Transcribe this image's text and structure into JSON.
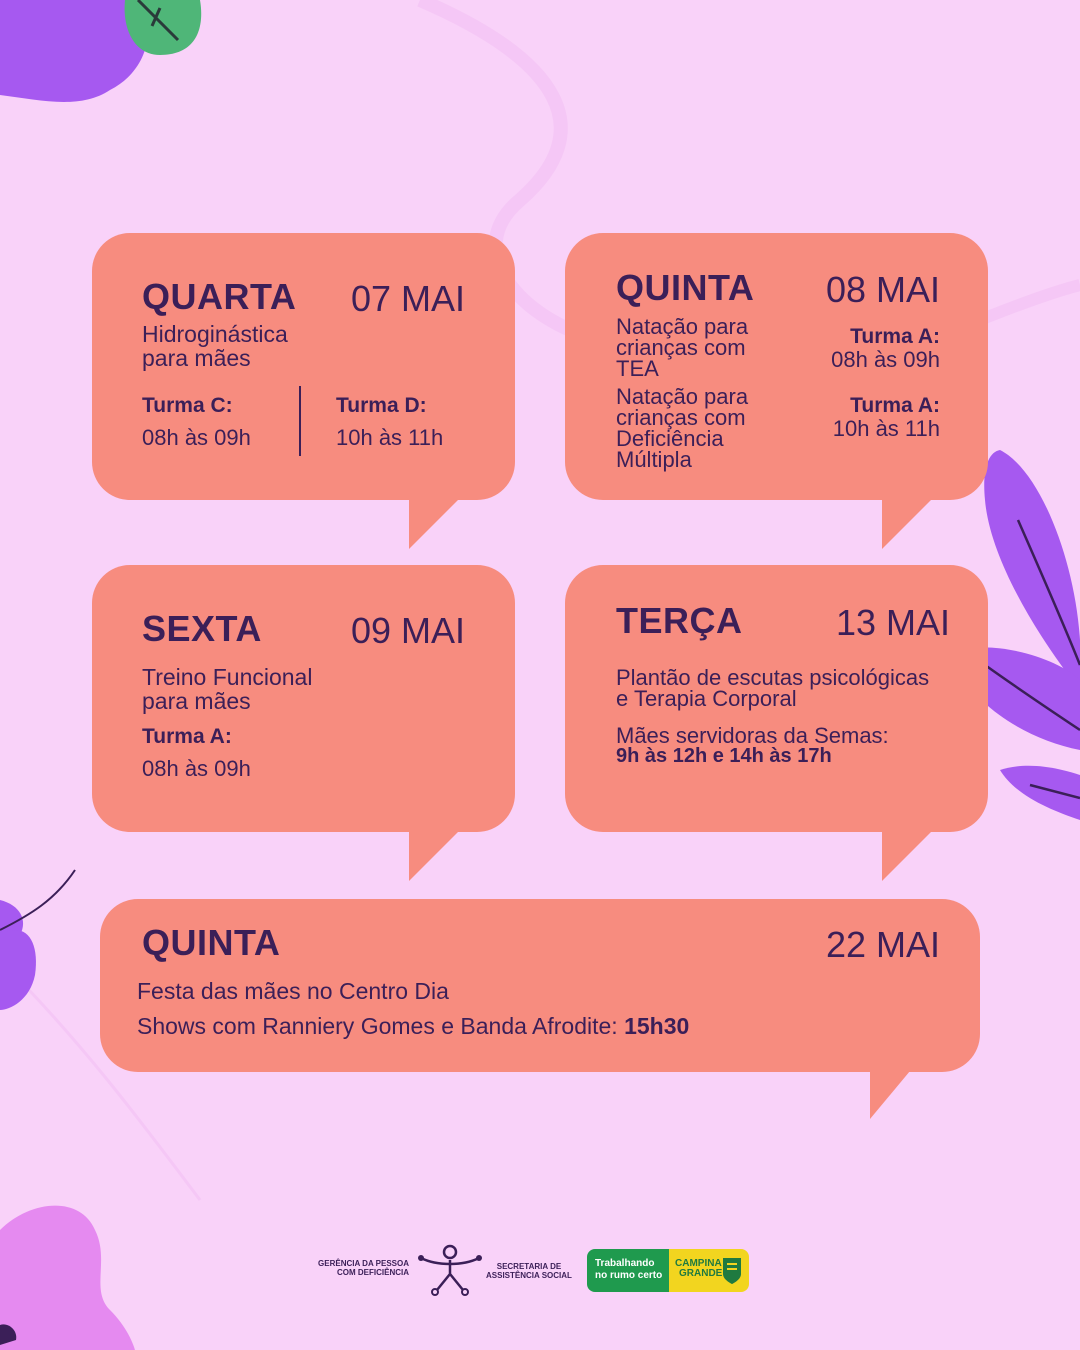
{
  "cards": [
    {
      "day": "QUARTA",
      "date": "07 MAI",
      "activity": [
        "Hidroginástica",
        "para mães"
      ],
      "groups": [
        {
          "label": "Turma C:",
          "time": "08h às 09h"
        },
        {
          "label": "Turma D:",
          "time": "10h às 11h"
        }
      ]
    },
    {
      "day": "QUINTA",
      "date": "08 MAI",
      "rows": [
        {
          "activity": [
            "Natação para",
            "crianças com",
            "TEA"
          ],
          "label": "Turma A:",
          "time": "08h às 09h"
        },
        {
          "activity": [
            "Natação para",
            "crianças com",
            "Deficiência",
            "Múltipla"
          ],
          "label": "Turma A:",
          "time": "10h às 11h"
        }
      ]
    },
    {
      "day": "SEXTA",
      "date": "09 MAI",
      "activity": [
        "Treino Funcional",
        "para mães"
      ],
      "label": "Turma A:",
      "time": "08h às 09h"
    },
    {
      "day": "TERÇA",
      "date": "13 MAI",
      "activity": [
        "Plantão de escutas psicológicas",
        "e Terapia Corporal"
      ],
      "note": "Mães servidoras da Semas:",
      "time": "9h às 12h e 14h às 17h"
    },
    {
      "day": "QUINTA",
      "date": "22 MAI",
      "line1": "Festa das mães no Centro Dia",
      "line2": "Shows com Ranniery Gomes e Banda Afrodite: ",
      "line2_time": "15h30"
    }
  ],
  "footer": {
    "gerencia": [
      "GERÊNCIA DA PESSOA",
      "COM DEFICIÊNCIA"
    ],
    "secretaria": [
      "SECRETARIA DE",
      "ASSISTÊNCIA SOCIAL"
    ],
    "slogan": [
      "Trabalhando",
      "no rumo certo"
    ],
    "prefeitura": [
      "CAMPINA",
      "GRANDE"
    ]
  },
  "colors": {
    "background": "#f9d2f9",
    "card": "#f78c7f",
    "text": "#3b1f58",
    "leaf_purple": "#a659f0",
    "flower_pink": "#e58af0",
    "leaf_green": "#4fb678"
  },
  "icons": [
    "flower-icon",
    "leaf-icon",
    "accessibility-logo-icon",
    "city-crest-icon"
  ]
}
